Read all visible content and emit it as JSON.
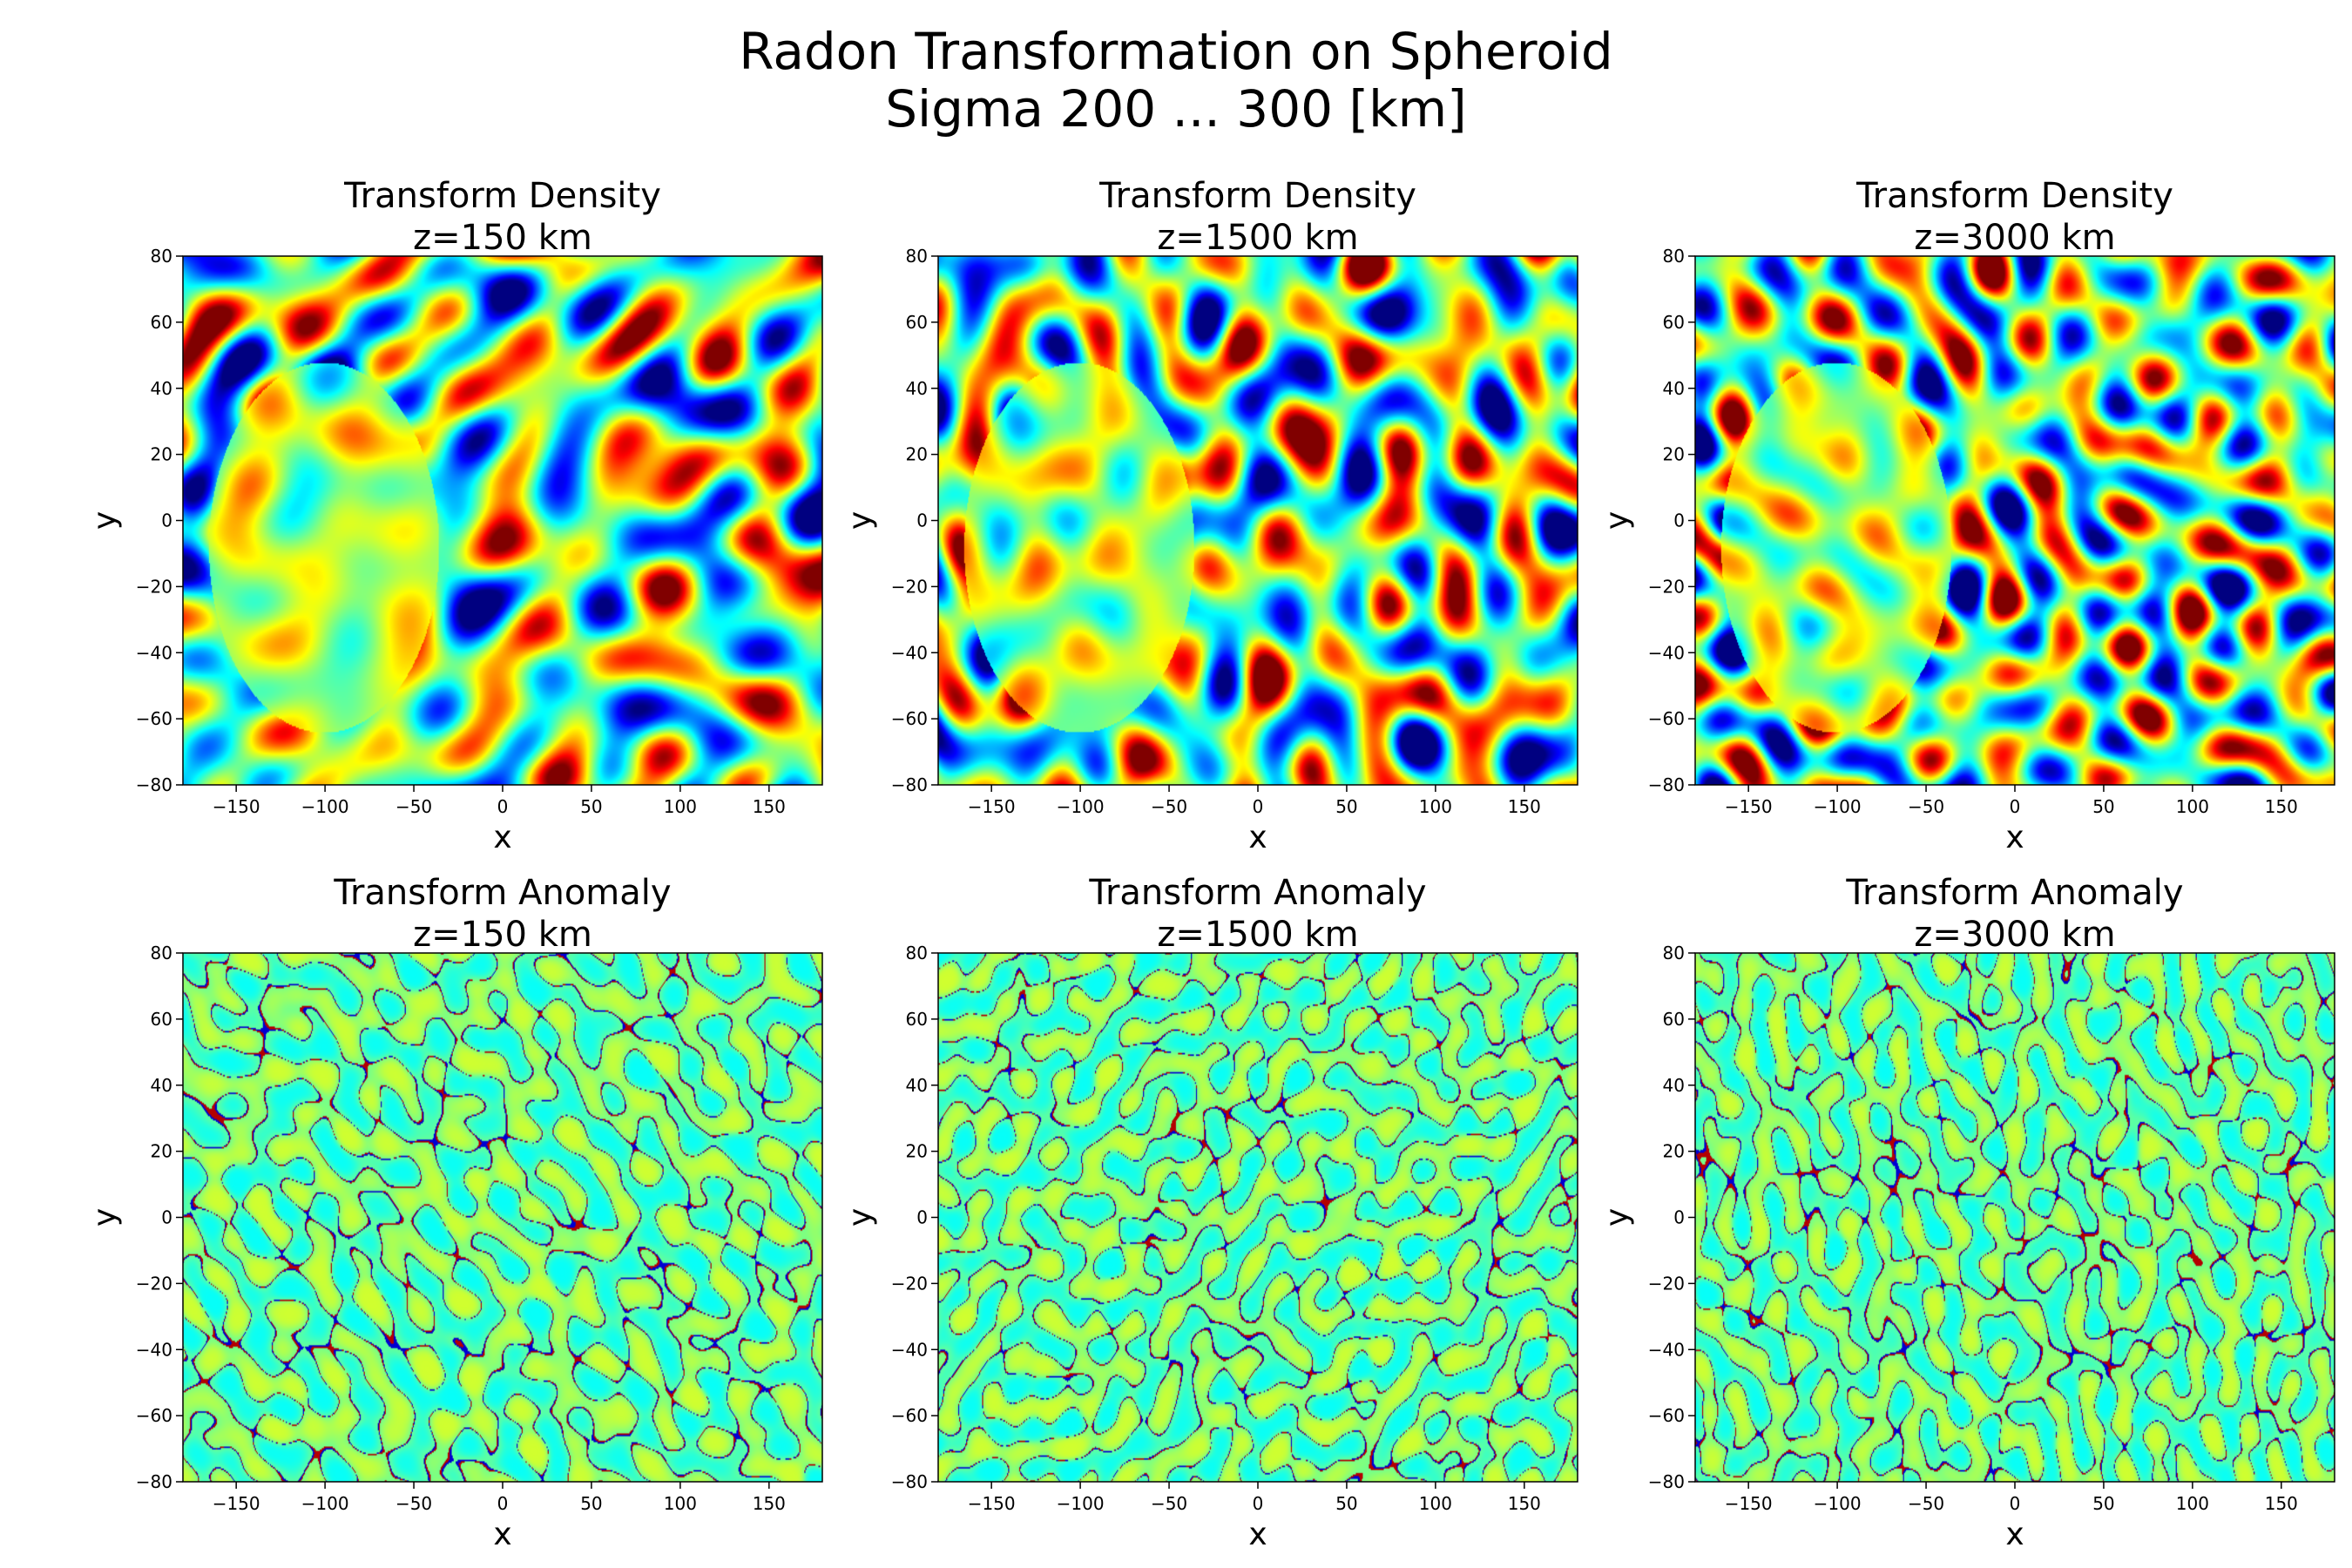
{
  "figure": {
    "title_line1": "Radon Transformation on Spheroid",
    "title_line2": "Sigma 200 ... 300 [km]"
  },
  "chart_data": [
    {
      "type": "heatmap",
      "title": "Transform Density",
      "subtitle": "z=150 km",
      "xlabel": "x",
      "ylabel": "y",
      "xlim": [
        -180,
        180
      ],
      "ylim": [
        -80,
        80
      ],
      "xticks": [
        -150,
        -100,
        -50,
        0,
        50,
        100,
        150
      ],
      "yticks": [
        -80,
        -60,
        -40,
        -20,
        0,
        20,
        40,
        60,
        80
      ],
      "colormap": "jet",
      "grid": false
    },
    {
      "type": "heatmap",
      "title": "Transform Density",
      "subtitle": "z=1500 km",
      "xlabel": "x",
      "ylabel": "y",
      "xlim": [
        -180,
        180
      ],
      "ylim": [
        -80,
        80
      ],
      "xticks": [
        -150,
        -100,
        -50,
        0,
        50,
        100,
        150
      ],
      "yticks": [
        -80,
        -60,
        -40,
        -20,
        0,
        20,
        40,
        60,
        80
      ],
      "colormap": "jet",
      "grid": false
    },
    {
      "type": "heatmap",
      "title": "Transform Density",
      "subtitle": "z=3000 km",
      "xlabel": "x",
      "ylabel": "y",
      "xlim": [
        -180,
        180
      ],
      "ylim": [
        -80,
        80
      ],
      "xticks": [
        -150,
        -100,
        -50,
        0,
        50,
        100,
        150
      ],
      "yticks": [
        -80,
        -60,
        -40,
        -20,
        0,
        20,
        40,
        60,
        80
      ],
      "colormap": "jet",
      "grid": false
    },
    {
      "type": "heatmap",
      "title": "Transform Anomaly",
      "subtitle": "z=150 km",
      "xlabel": "x",
      "ylabel": "y",
      "xlim": [
        -180,
        180
      ],
      "ylim": [
        -80,
        80
      ],
      "xticks": [
        -150,
        -100,
        -50,
        0,
        50,
        100,
        150
      ],
      "yticks": [
        -80,
        -60,
        -40,
        -20,
        0,
        20,
        40,
        60,
        80
      ],
      "colormap": "jet",
      "grid": false
    },
    {
      "type": "heatmap",
      "title": "Transform Anomaly",
      "subtitle": "z=1500 km",
      "xlabel": "x",
      "ylabel": "y",
      "xlim": [
        -180,
        180
      ],
      "ylim": [
        -80,
        80
      ],
      "xticks": [
        -150,
        -100,
        -50,
        0,
        50,
        100,
        150
      ],
      "yticks": [
        -80,
        -60,
        -40,
        -20,
        0,
        20,
        40,
        60,
        80
      ],
      "colormap": "jet",
      "grid": false
    },
    {
      "type": "heatmap",
      "title": "Transform Anomaly",
      "subtitle": "z=3000 km",
      "xlabel": "x",
      "ylabel": "y",
      "xlim": [
        -180,
        180
      ],
      "ylim": [
        -80,
        80
      ],
      "xticks": [
        -150,
        -100,
        -50,
        0,
        50,
        100,
        150
      ],
      "yticks": [
        -80,
        -60,
        -40,
        -20,
        0,
        20,
        40,
        60,
        80
      ],
      "colormap": "jet",
      "grid": false
    }
  ]
}
